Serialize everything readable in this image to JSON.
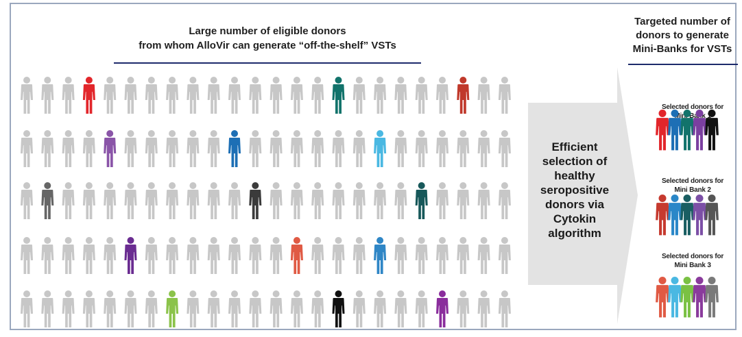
{
  "pool": {
    "title_line1": "Large number of eligible donors",
    "title_line2": "from whom AlloVir can generate “off-the-shelf”  VSTs"
  },
  "target": {
    "title_line1": "Targeted number of",
    "title_line2": "donors to generate",
    "title_line3": "Mini-Banks for VSTs"
  },
  "process": {
    "lines": [
      "Efficient",
      "selection  of",
      "healthy",
      "seropositive",
      "donors via",
      "Cytokin",
      "algorithm"
    ]
  },
  "banks": [
    {
      "line1": "Selected donors for",
      "line2": "Mini Bank 1",
      "colors": [
        "#e2262b",
        "#1d6fb5",
        "#12736b",
        "#7b3fa0",
        "#111111"
      ]
    },
    {
      "line1": "Selected donors for",
      "line2": "Mini Bank 2",
      "colors": [
        "#c63a2f",
        "#2a87c8",
        "#1a5e62",
        "#7c4fa6",
        "#555555"
      ]
    },
    {
      "line1": "Selected donors for",
      "line2": "Mini Bank 3",
      "colors": [
        "#e05a44",
        "#4ab8e2",
        "#7ac143",
        "#8a3b9c",
        "#7a7a7a"
      ]
    }
  ],
  "colors": {
    "donor_gray": "#c7c7c7",
    "arrow_gray": "#e3e3e3",
    "rule_navy": "#1d2a6b"
  },
  "crowd": {
    "rows": 5,
    "per_row": 24,
    "highlights": [
      {
        "row": 0,
        "index": 3,
        "color": "#e2262b"
      },
      {
        "row": 0,
        "index": 15,
        "color": "#12736b"
      },
      {
        "row": 0,
        "index": 21,
        "color": "#c0392b"
      },
      {
        "row": 1,
        "index": 4,
        "color": "#8a55a8"
      },
      {
        "row": 1,
        "index": 10,
        "color": "#1d6fb5"
      },
      {
        "row": 1,
        "index": 17,
        "color": "#4ab8e2"
      },
      {
        "row": 2,
        "index": 1,
        "color": "#666666"
      },
      {
        "row": 2,
        "index": 11,
        "color": "#3b3b3b"
      },
      {
        "row": 2,
        "index": 19,
        "color": "#17585a"
      },
      {
        "row": 3,
        "index": 5,
        "color": "#6a2c91"
      },
      {
        "row": 3,
        "index": 13,
        "color": "#e05a44"
      },
      {
        "row": 3,
        "index": 17,
        "color": "#2f86c6"
      },
      {
        "row": 4,
        "index": 7,
        "color": "#8bc34a"
      },
      {
        "row": 4,
        "index": 15,
        "color": "#111111"
      },
      {
        "row": 4,
        "index": 20,
        "color": "#8a2d9c"
      }
    ]
  }
}
